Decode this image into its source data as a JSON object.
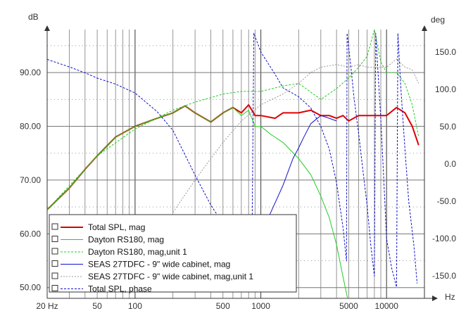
{
  "chart_data": {
    "type": "line",
    "y_unit_left": "dB",
    "y_unit_right": "deg",
    "x_unit": "Hz",
    "x_scale": "log",
    "xlim": [
      20,
      20000
    ],
    "ylim_left": [
      48,
      98
    ],
    "ylim_right": [
      -180,
      180
    ],
    "x_tick_labels": [
      {
        "value": 20,
        "label": "20 Hz"
      },
      {
        "value": 50,
        "label": "50"
      },
      {
        "value": 100,
        "label": "100"
      },
      {
        "value": 500,
        "label": "500"
      },
      {
        "value": 1000,
        "label": "1000"
      },
      {
        "value": 5000,
        "label": "5000"
      },
      {
        "value": 10000,
        "label": "10000"
      }
    ],
    "left_tick_labels": [
      {
        "value": 90,
        "label": "90.00"
      },
      {
        "value": 80,
        "label": "80.00"
      },
      {
        "value": 70,
        "label": "70.00"
      },
      {
        "value": 60,
        "label": "60.00"
      },
      {
        "value": 50,
        "label": "50.00"
      }
    ],
    "right_tick_labels": [
      {
        "value": 150,
        "label": "150.0"
      },
      {
        "value": 100,
        "label": "100.0"
      },
      {
        "value": 50,
        "label": "50.0"
      },
      {
        "value": 0,
        "label": "0.0"
      },
      {
        "value": -50,
        "label": "-50.0"
      },
      {
        "value": -100,
        "label": "-100.0"
      },
      {
        "value": -150,
        "label": "-150.0"
      }
    ],
    "grid": true,
    "legend_position": "bottom-left",
    "series": [
      {
        "name": "Total SPL, mag",
        "color": "#e00000",
        "dash": "solid",
        "width": 2,
        "axis": "left",
        "points": [
          [
            20,
            64.5
          ],
          [
            30,
            68.5
          ],
          [
            40,
            72
          ],
          [
            50,
            74.5
          ],
          [
            70,
            78
          ],
          [
            100,
            80
          ],
          [
            150,
            81.5
          ],
          [
            200,
            82.5
          ],
          [
            250,
            83.8
          ],
          [
            300,
            82.5
          ],
          [
            400,
            80.8
          ],
          [
            500,
            82.5
          ],
          [
            600,
            83.5
          ],
          [
            700,
            82.5
          ],
          [
            800,
            84
          ],
          [
            900,
            82
          ],
          [
            1000,
            82
          ],
          [
            1300,
            81.5
          ],
          [
            1500,
            82.5
          ],
          [
            2000,
            82.5
          ],
          [
            2500,
            83
          ],
          [
            3000,
            82
          ],
          [
            3500,
            82
          ],
          [
            4000,
            81.5
          ],
          [
            4500,
            82
          ],
          [
            5000,
            81
          ],
          [
            6000,
            82
          ],
          [
            7000,
            82
          ],
          [
            8000,
            82
          ],
          [
            9000,
            82
          ],
          [
            10000,
            82
          ],
          [
            12000,
            83.5
          ],
          [
            14000,
            82.5
          ],
          [
            16000,
            80
          ],
          [
            18000,
            76.5
          ]
        ]
      },
      {
        "name": "Dayton RS180, mag",
        "color": "#22cc22",
        "dash": "solid",
        "width": 1,
        "axis": "left",
        "points": [
          [
            20,
            64.5
          ],
          [
            30,
            68.5
          ],
          [
            40,
            72
          ],
          [
            50,
            74.5
          ],
          [
            70,
            78
          ],
          [
            100,
            80
          ],
          [
            150,
            81.5
          ],
          [
            200,
            82.5
          ],
          [
            250,
            83.8
          ],
          [
            300,
            82.5
          ],
          [
            400,
            80.8
          ],
          [
            500,
            82.5
          ],
          [
            600,
            83.5
          ],
          [
            700,
            82
          ],
          [
            800,
            83
          ],
          [
            900,
            80
          ],
          [
            1000,
            80
          ],
          [
            1200,
            78.5
          ],
          [
            1500,
            77
          ],
          [
            2000,
            74
          ],
          [
            2500,
            71
          ],
          [
            3000,
            67
          ],
          [
            3500,
            63
          ],
          [
            4000,
            58
          ],
          [
            4500,
            52
          ],
          [
            5000,
            47
          ]
        ]
      },
      {
        "name": "Dayton RS180, mag,unit 1",
        "color": "#22cc22",
        "dash": "3,2",
        "width": 1,
        "axis": "left",
        "points": [
          [
            20,
            64.5
          ],
          [
            50,
            74.5
          ],
          [
            100,
            79.5
          ],
          [
            200,
            83
          ],
          [
            300,
            84.5
          ],
          [
            500,
            86
          ],
          [
            700,
            86.5
          ],
          [
            1000,
            86.5
          ],
          [
            1500,
            87.5
          ],
          [
            2000,
            88
          ],
          [
            3000,
            85
          ],
          [
            4000,
            87
          ],
          [
            5000,
            89
          ],
          [
            6000,
            91
          ],
          [
            7000,
            93
          ],
          [
            8000,
            98
          ],
          [
            9000,
            92
          ],
          [
            10000,
            90
          ],
          [
            12000,
            90
          ],
          [
            14000,
            88
          ],
          [
            16000,
            84
          ],
          [
            18000,
            78
          ]
        ]
      },
      {
        "name": "SEAS 27TDFC - 9\" wide cabinet, mag",
        "color": "#1010cc",
        "dash": "solid",
        "width": 1,
        "axis": "left",
        "points": [
          [
            900,
            57
          ],
          [
            1000,
            60
          ],
          [
            1200,
            64
          ],
          [
            1500,
            69
          ],
          [
            1800,
            74
          ],
          [
            2000,
            76
          ],
          [
            2200,
            78
          ],
          [
            2500,
            80.5
          ],
          [
            3000,
            82
          ],
          [
            3500,
            81.5
          ],
          [
            4000,
            81
          ]
        ]
      },
      {
        "name": "SEAS 27TDFC - 9\" wide cabinet, mag,unit 1",
        "color": "#999999",
        "dash": "2,2",
        "width": 1,
        "axis": "left",
        "points": [
          [
            200,
            64
          ],
          [
            300,
            70
          ],
          [
            400,
            74
          ],
          [
            500,
            77
          ],
          [
            700,
            81
          ],
          [
            1000,
            84
          ],
          [
            1500,
            86
          ],
          [
            2000,
            88
          ],
          [
            2500,
            90
          ],
          [
            3000,
            91
          ],
          [
            4000,
            91.5
          ],
          [
            5000,
            91
          ],
          [
            6000,
            91.5
          ],
          [
            7000,
            91
          ],
          [
            8000,
            91
          ],
          [
            9000,
            91
          ],
          [
            10000,
            91
          ],
          [
            12000,
            92.5
          ],
          [
            14000,
            91
          ],
          [
            16000,
            90.5
          ],
          [
            18000,
            88
          ]
        ]
      },
      {
        "name": "Total SPL, phase",
        "color": "#1010cc",
        "dash": "3,2",
        "width": 1,
        "axis": "right",
        "points": [
          [
            20,
            140
          ],
          [
            30,
            130
          ],
          [
            40,
            122
          ],
          [
            50,
            115
          ],
          [
            70,
            107
          ],
          [
            100,
            95
          ],
          [
            150,
            70
          ],
          [
            200,
            45
          ],
          [
            300,
            -15
          ],
          [
            400,
            -55
          ],
          [
            500,
            -80
          ],
          [
            700,
            -100
          ],
          [
            850,
            -120
          ],
          [
            880,
            175
          ],
          [
            950,
            160
          ],
          [
            1000,
            150
          ],
          [
            1300,
            120
          ],
          [
            1500,
            102
          ],
          [
            2000,
            90
          ],
          [
            2500,
            75
          ],
          [
            3000,
            50
          ],
          [
            3500,
            20
          ],
          [
            4000,
            -25
          ],
          [
            4500,
            -85
          ],
          [
            4800,
            -130
          ],
          [
            4850,
            175
          ],
          [
            5200,
            130
          ],
          [
            5500,
            90
          ],
          [
            6000,
            40
          ],
          [
            6500,
            -10
          ],
          [
            7000,
            -55
          ],
          [
            7500,
            -110
          ],
          [
            8000,
            -150
          ],
          [
            8200,
            175
          ],
          [
            8500,
            130
          ],
          [
            9000,
            60
          ],
          [
            9500,
            -20
          ],
          [
            10000,
            -100
          ],
          [
            11000,
            -140
          ],
          [
            12000,
            -165
          ],
          [
            12300,
            175
          ],
          [
            13000,
            100
          ],
          [
            14000,
            20
          ],
          [
            15000,
            -50
          ],
          [
            16500,
            -110
          ],
          [
            17500,
            -160
          ]
        ]
      }
    ],
    "legend": [
      "Total SPL, mag",
      "Dayton RS180, mag",
      "Dayton RS180, mag,unit 1",
      "SEAS 27TDFC - 9\" wide cabinet, mag",
      "SEAS 27TDFC - 9\" wide cabinet, mag,unit 1",
      "Total SPL, phase"
    ]
  }
}
